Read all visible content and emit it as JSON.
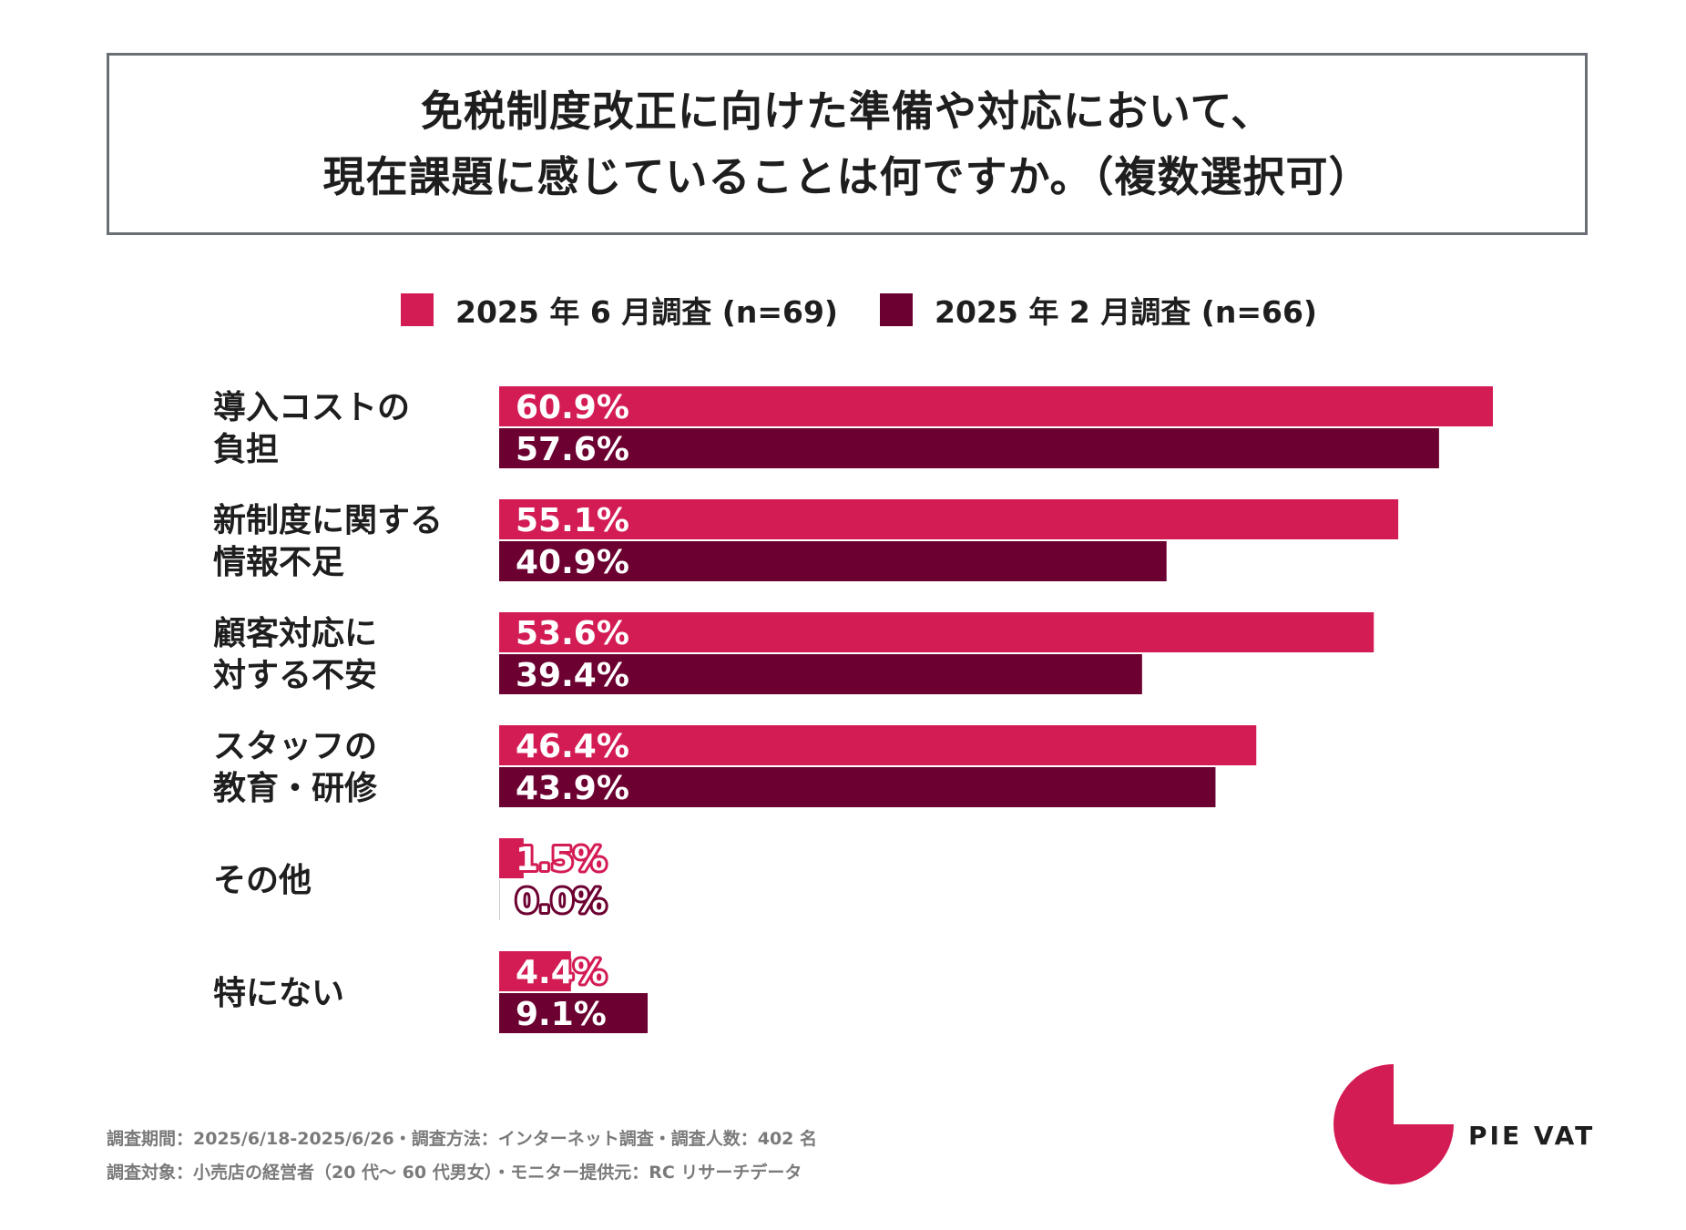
{
  "title": {
    "line1": "免税制度改正に向けた準備や対応において、",
    "line2": "現在課題に感じていることは何ですか。（複数選択可）"
  },
  "colors": {
    "june": "#d41c54",
    "feb": "#6c0030",
    "text": "#1e1e1e",
    "footer": "#7a7a7a"
  },
  "chart_data": {
    "type": "bar",
    "orientation": "horizontal",
    "unit": "%",
    "xlim": [
      0,
      61
    ],
    "grid": false,
    "legend_position": "top",
    "categories": [
      [
        "導入コストの",
        "負担"
      ],
      [
        "新制度に関する",
        "情報不足"
      ],
      [
        "顧客対応に",
        "対する不安"
      ],
      [
        "スタッフの",
        "教育・研修"
      ],
      [
        "その他"
      ],
      [
        "特にない"
      ]
    ],
    "series": [
      {
        "name": "2025 年 6 月調査 (n=69)",
        "color": "#d41c54",
        "values": [
          60.9,
          55.1,
          53.6,
          46.4,
          1.5,
          4.4
        ],
        "labels": [
          "60.9%",
          "55.1%",
          "53.6%",
          "46.4%",
          "1.5%",
          "4.4%"
        ]
      },
      {
        "name": "2025 年 2 月調査 (n=66)",
        "color": "#6c0030",
        "values": [
          57.6,
          40.9,
          39.4,
          43.9,
          0.0,
          9.1
        ],
        "labels": [
          "57.6%",
          "40.9%",
          "39.4%",
          "43.9%",
          "0.0%",
          "9.1%"
        ]
      }
    ]
  },
  "footer": {
    "line1": "調査期間：2025/6/18-2025/6/26・調査方法：インターネット調査・調査人数：402 名",
    "line2": "調査対象：小売店の経営者（20 代～ 60 代男女）・モニター提供元：RC リサーチデータ"
  },
  "brand": {
    "name": "PIE VAT",
    "logo_color": "#d41c54"
  }
}
